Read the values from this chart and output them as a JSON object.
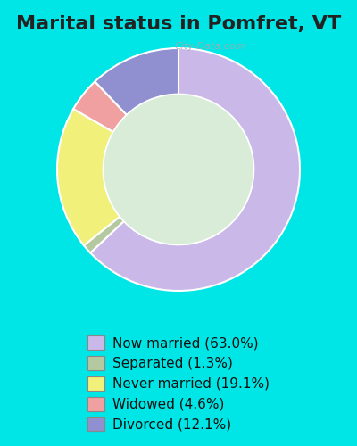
{
  "title": "Marital status in Pomfret, VT",
  "slices": [
    63.0,
    1.3,
    19.1,
    4.6,
    12.1
  ],
  "labels": [
    "Now married (63.0%)",
    "Separated (1.3%)",
    "Never married (19.1%)",
    "Widowed (4.6%)",
    "Divorced (12.1%)"
  ],
  "colors": [
    "#c9b8e8",
    "#b5c9a0",
    "#f0f07a",
    "#f0a0a0",
    "#9090d0"
  ],
  "bg_outer": "#00e5e5",
  "bg_inner": "#d8ecd8",
  "watermark": "City-Data.com",
  "title_fontsize": 16,
  "legend_fontsize": 11
}
